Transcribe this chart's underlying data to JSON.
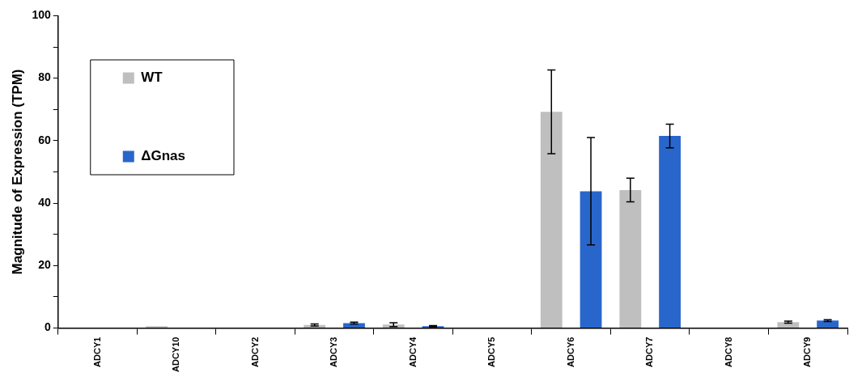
{
  "chart_data": {
    "type": "bar",
    "ylabel": "Magnitude of Expression (TPM)",
    "categories": [
      "ADCY1",
      "ADCY10",
      "ADCY2",
      "ADCY3",
      "ADCY4",
      "ADCY5",
      "ADCY6",
      "ADCY7",
      "ADCY8",
      "ADCY9"
    ],
    "series": [
      {
        "name": "WT",
        "color": "#bfbfbf",
        "values": [
          0,
          0.6,
          0,
          1.0,
          1.1,
          0,
          69.2,
          44.2,
          0,
          1.9
        ],
        "errors": [
          null,
          null,
          null,
          0.3,
          0.6,
          null,
          13.4,
          3.8,
          null,
          0.3
        ]
      },
      {
        "name": "ΔGnas",
        "color": "#2966cc",
        "values": [
          0,
          0,
          0,
          1.6,
          0.6,
          0,
          43.8,
          61.5,
          0,
          2.4
        ],
        "errors": [
          null,
          null,
          null,
          0.3,
          0.2,
          null,
          17.2,
          3.8,
          null,
          0.3
        ]
      }
    ],
    "ylim": [
      0,
      100
    ],
    "yticks": [
      0,
      {
        "value": 10,
        "label": null
      },
      20,
      {
        "value": 30,
        "label": null
      },
      40,
      {
        "value": 50,
        "label": null
      },
      60,
      {
        "value": 70,
        "label": null
      },
      80,
      {
        "value": 90,
        "label": null
      },
      100
    ],
    "grid": false,
    "legend": "top left"
  }
}
